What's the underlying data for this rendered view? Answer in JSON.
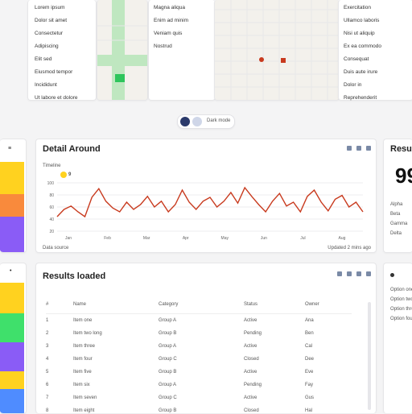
{
  "top_left_list": [
    "Lorem ipsum",
    "Dolor sit amet",
    "Consectetur",
    "Adipiscing",
    "Elit sed",
    "Eiusmod tempor",
    "Incididunt",
    "Ut labore et dolore"
  ],
  "top_mid_list": [
    "Magna aliqua",
    "Enim ad minim",
    "Veniam quis",
    "Nostrud"
  ],
  "top_right_list": [
    "Exercitation",
    "Ullamco laboris",
    "Nisi ut aliquip",
    "Ex ea commodo",
    "Consequat",
    "Duis aute irure",
    "Dolor in",
    "Reprehenderit"
  ],
  "switcher": {
    "label": "Dark mode"
  },
  "detail_panel": {
    "title": "Detail Around",
    "subtitle": "Timeline",
    "tag": "9",
    "y_ticks": [
      "100",
      "80",
      "60",
      "40",
      "20"
    ],
    "x_ticks": [
      "Jan",
      "Feb",
      "Mar",
      "Apr",
      "May",
      "Jun",
      "Jul",
      "Aug"
    ],
    "footer_left": "Data source",
    "footer_right": "Updated 2 mins ago"
  },
  "right_stat": {
    "title": "Results",
    "value": "99",
    "items": [
      "Alpha",
      "Beta",
      "Gamma",
      "Delta"
    ]
  },
  "results_panel": {
    "title": "Results loaded",
    "columns": [
      "#",
      "Name",
      "Category",
      "Status",
      "Owner"
    ],
    "rows": [
      [
        "1",
        "Item one",
        "Group A",
        "Active",
        "Ana"
      ],
      [
        "2",
        "Item two long",
        "Group B",
        "Pending",
        "Ben"
      ],
      [
        "3",
        "Item three",
        "Group A",
        "Active",
        "Cal"
      ],
      [
        "4",
        "Item four",
        "Group C",
        "Closed",
        "Dee"
      ],
      [
        "5",
        "Item five",
        "Group B",
        "Active",
        "Eve"
      ],
      [
        "6",
        "Item six",
        "Group A",
        "Pending",
        "Fay"
      ],
      [
        "7",
        "Item seven",
        "Group C",
        "Active",
        "Gus"
      ],
      [
        "8",
        "Item eight",
        "Group B",
        "Closed",
        "Hal"
      ]
    ]
  },
  "right_side_list": [
    "Option one",
    "Option two",
    "Option three",
    "Option four"
  ],
  "colors": {
    "accent": "#c83a1e",
    "yellow": "#ffd21f",
    "orange": "#f98a3c",
    "purple": "#8a5cf6",
    "green": "#3fe06b",
    "blue": "#4f8cff"
  },
  "chart_data": {
    "type": "line",
    "x": [
      0,
      1,
      2,
      3,
      4,
      5,
      6,
      7,
      8,
      9,
      10,
      11,
      12,
      13,
      14,
      15,
      16,
      17,
      18,
      19,
      20,
      21,
      22,
      23,
      24,
      25,
      26,
      27,
      28,
      29,
      30,
      31,
      32,
      33,
      34,
      35,
      36,
      37,
      38,
      39,
      40,
      41,
      42,
      43,
      44
    ],
    "series": [
      {
        "name": "",
        "values": [
          30,
          45,
          52,
          40,
          30,
          70,
          88,
          62,
          48,
          40,
          60,
          45,
          55,
          72,
          50,
          62,
          40,
          55,
          85,
          60,
          45,
          62,
          70,
          50,
          62,
          80,
          58,
          90,
          72,
          55,
          40,
          62,
          78,
          52,
          60,
          40,
          72,
          85,
          60,
          42,
          66,
          74,
          50,
          60,
          40
        ]
      }
    ],
    "ylim": [
      0,
      100
    ],
    "grid": true
  }
}
